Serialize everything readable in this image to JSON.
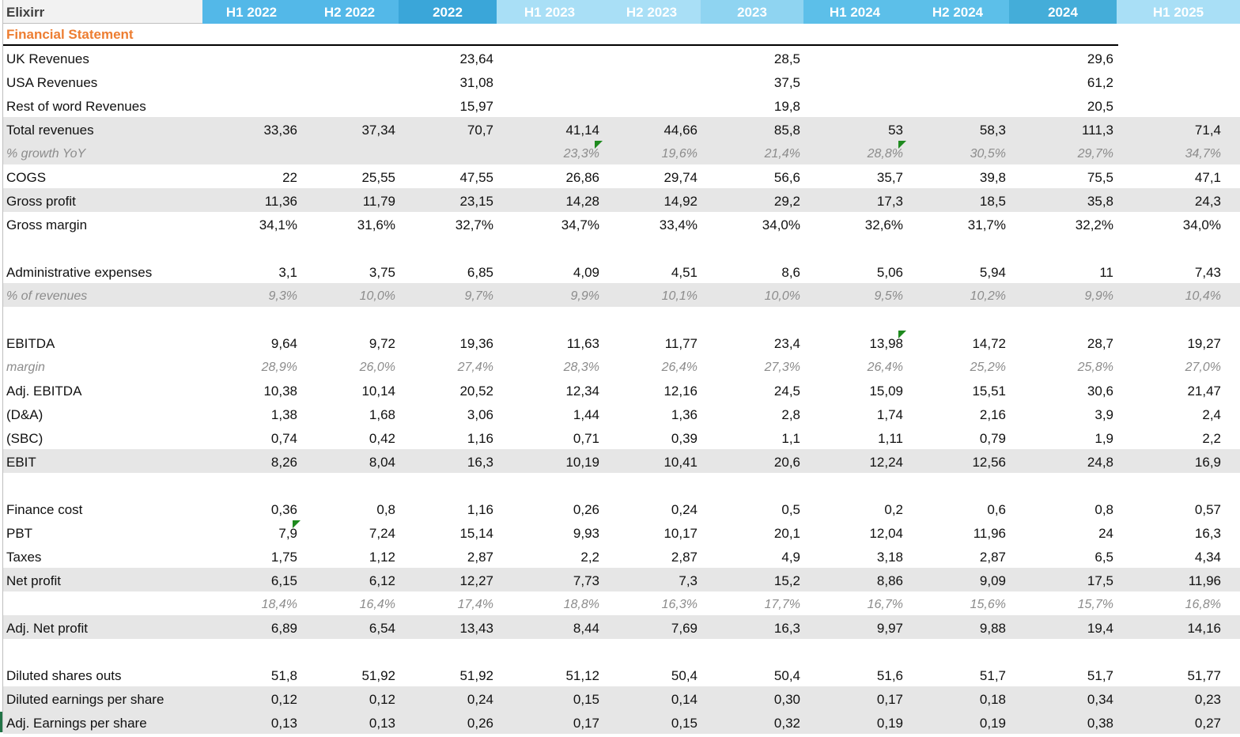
{
  "sheet": {
    "company": "Elixirr",
    "section_title": "Financial Statement",
    "columns": [
      "H1 2022",
      "H2 2022",
      "2022",
      "H1 2023",
      "H2 2023",
      "2023",
      "H1 2024",
      "H2 2024",
      "2024",
      "H1 2025"
    ],
    "header_colors": [
      "#53b8e8",
      "#53b8e8",
      "#3aa6d9",
      "#a9dff6",
      "#a9dff6",
      "#8fd4f1",
      "#5cbfe9",
      "#5cbfe9",
      "#44add9",
      "#a9dff6"
    ],
    "rows": [
      {
        "label": "UK Revenues",
        "values": [
          "",
          "",
          "23,64",
          "",
          "",
          "28,5",
          "",
          "",
          "29,6",
          ""
        ]
      },
      {
        "label": "USA Revenues",
        "values": [
          "",
          "",
          "31,08",
          "",
          "",
          "37,5",
          "",
          "",
          "61,2",
          ""
        ]
      },
      {
        "label": "Rest of word Revenues",
        "values": [
          "",
          "",
          "15,97",
          "",
          "",
          "19,8",
          "",
          "",
          "20,5",
          ""
        ]
      },
      {
        "label": "Total revenues",
        "values": [
          "33,36",
          "37,34",
          "70,7",
          "41,14",
          "44,66",
          "85,8",
          "53",
          "58,3",
          "111,3",
          "71,4"
        ]
      },
      {
        "label": "% growth YoY",
        "values": [
          "",
          "",
          "",
          "23,3%",
          "19,6%",
          "21,4%",
          "28,8%",
          "30,5%",
          "29,7%",
          "34,7%"
        ]
      },
      {
        "label": "COGS",
        "values": [
          "22",
          "25,55",
          "47,55",
          "26,86",
          "29,74",
          "56,6",
          "35,7",
          "39,8",
          "75,5",
          "47,1"
        ]
      },
      {
        "label": "Gross profit",
        "values": [
          "11,36",
          "11,79",
          "23,15",
          "14,28",
          "14,92",
          "29,2",
          "17,3",
          "18,5",
          "35,8",
          "24,3"
        ]
      },
      {
        "label": "Gross margin",
        "values": [
          "34,1%",
          "31,6%",
          "32,7%",
          "34,7%",
          "33,4%",
          "34,0%",
          "32,6%",
          "31,7%",
          "32,2%",
          "34,0%"
        ]
      },
      {
        "label": "",
        "values": [
          "",
          "",
          "",
          "",
          "",
          "",
          "",
          "",
          "",
          ""
        ]
      },
      {
        "label": "Administrative expenses",
        "values": [
          "3,1",
          "3,75",
          "6,85",
          "4,09",
          "4,51",
          "8,6",
          "5,06",
          "5,94",
          "11",
          "7,43"
        ]
      },
      {
        "label": "% of revenues",
        "values": [
          "9,3%",
          "10,0%",
          "9,7%",
          "9,9%",
          "10,1%",
          "10,0%",
          "9,5%",
          "10,2%",
          "9,9%",
          "10,4%"
        ]
      },
      {
        "label": "",
        "values": [
          "",
          "",
          "",
          "",
          "",
          "",
          "",
          "",
          "",
          ""
        ]
      },
      {
        "label": "EBITDA",
        "values": [
          "9,64",
          "9,72",
          "19,36",
          "11,63",
          "11,77",
          "23,4",
          "13,98",
          "14,72",
          "28,7",
          "19,27"
        ]
      },
      {
        "label": "margin",
        "values": [
          "28,9%",
          "26,0%",
          "27,4%",
          "28,3%",
          "26,4%",
          "27,3%",
          "26,4%",
          "25,2%",
          "25,8%",
          "27,0%"
        ]
      },
      {
        "label": "Adj. EBITDA",
        "values": [
          "10,38",
          "10,14",
          "20,52",
          "12,34",
          "12,16",
          "24,5",
          "15,09",
          "15,51",
          "30,6",
          "21,47"
        ]
      },
      {
        "label": "(D&A)",
        "values": [
          "1,38",
          "1,68",
          "3,06",
          "1,44",
          "1,36",
          "2,8",
          "1,74",
          "2,16",
          "3,9",
          "2,4"
        ]
      },
      {
        "label": "(SBC)",
        "values": [
          "0,74",
          "0,42",
          "1,16",
          "0,71",
          "0,39",
          "1,1",
          "1,11",
          "0,79",
          "1,9",
          "2,2"
        ]
      },
      {
        "label": "EBIT",
        "values": [
          "8,26",
          "8,04",
          "16,3",
          "10,19",
          "10,41",
          "20,6",
          "12,24",
          "12,56",
          "24,8",
          "16,9"
        ]
      },
      {
        "label": "",
        "values": [
          "",
          "",
          "",
          "",
          "",
          "",
          "",
          "",
          "",
          ""
        ]
      },
      {
        "label": "Finance cost",
        "values": [
          "0,36",
          "0,8",
          "1,16",
          "0,26",
          "0,24",
          "0,5",
          "0,2",
          "0,6",
          "0,8",
          "0,57"
        ]
      },
      {
        "label": "PBT",
        "values": [
          "7,9",
          "7,24",
          "15,14",
          "9,93",
          "10,17",
          "20,1",
          "12,04",
          "11,96",
          "24",
          "16,3"
        ]
      },
      {
        "label": "Taxes",
        "values": [
          "1,75",
          "1,12",
          "2,87",
          "2,2",
          "2,87",
          "4,9",
          "3,18",
          "2,87",
          "6,5",
          "4,34"
        ]
      },
      {
        "label": "Net profit",
        "values": [
          "6,15",
          "6,12",
          "12,27",
          "7,73",
          "7,3",
          "15,2",
          "8,86",
          "9,09",
          "17,5",
          "11,96"
        ]
      },
      {
        "label": "",
        "values": [
          "18,4%",
          "16,4%",
          "17,4%",
          "18,8%",
          "16,3%",
          "17,7%",
          "16,7%",
          "15,6%",
          "15,7%",
          "16,8%"
        ]
      },
      {
        "label": "Adj. Net profit",
        "values": [
          "6,89",
          "6,54",
          "13,43",
          "8,44",
          "7,69",
          "16,3",
          "9,97",
          "9,88",
          "19,4",
          "14,16"
        ]
      },
      {
        "label": "",
        "values": [
          "",
          "",
          "",
          "",
          "",
          "",
          "",
          "",
          "",
          ""
        ]
      },
      {
        "label": "Diluted shares outs",
        "values": [
          "51,8",
          "51,92",
          "51,92",
          "51,12",
          "50,4",
          "50,4",
          "51,6",
          "51,7",
          "51,7",
          "51,77"
        ]
      },
      {
        "label": "Diluted earnings per share",
        "values": [
          "0,12",
          "0,12",
          "0,24",
          "0,15",
          "0,14",
          "0,30",
          "0,17",
          "0,18",
          "0,34",
          "0,23"
        ]
      },
      {
        "label": "Adj. Earnings per share",
        "values": [
          "0,13",
          "0,13",
          "0,26",
          "0,17",
          "0,15",
          "0,32",
          "0,19",
          "0,19",
          "0,38",
          "0,27"
        ]
      }
    ],
    "colors": {
      "section_title": "#ed7d31",
      "shaded_row": "#e6e6e6",
      "italic_text": "#8c8c8c",
      "comment_flag": "#1e8a1e"
    }
  }
}
